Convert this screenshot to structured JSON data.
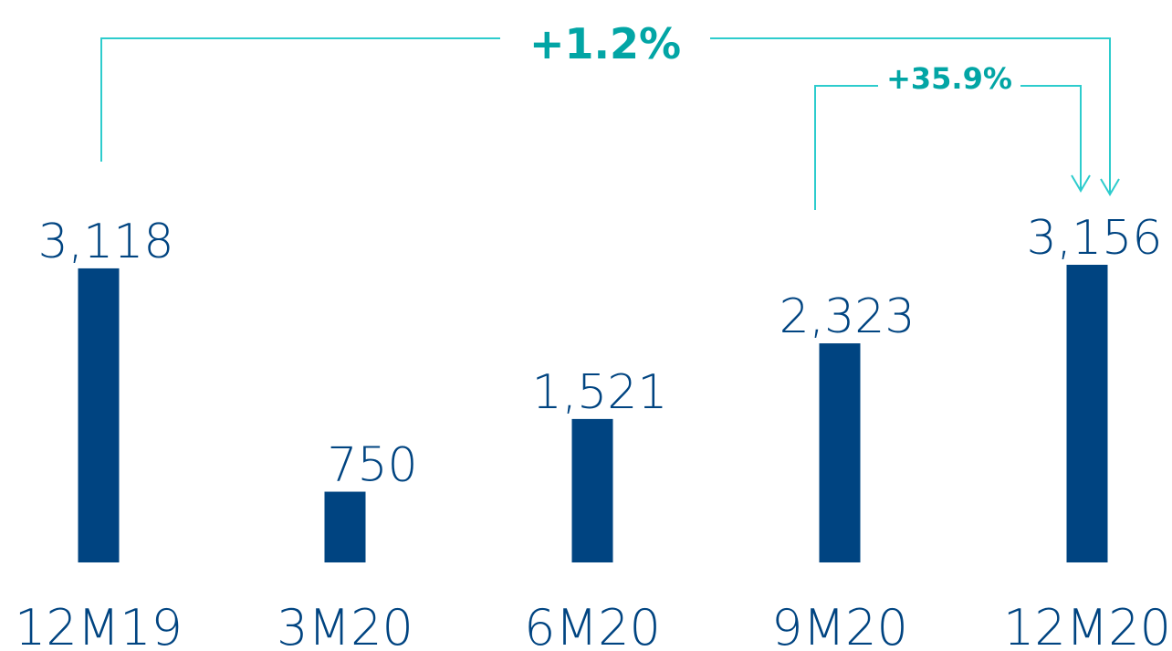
{
  "chart_data": {
    "type": "bar",
    "categories": [
      "12M19",
      "3M20",
      "6M20",
      "9M20",
      "12M20"
    ],
    "values": [
      3118,
      750,
      1521,
      2323,
      3156
    ],
    "value_labels": [
      "3,118",
      "750",
      "1,521",
      "2,323",
      "3,156"
    ],
    "title": "",
    "xlabel": "",
    "ylabel": "",
    "ylim": [
      0,
      3300
    ],
    "grid": false,
    "legend": "none",
    "annotations": [
      {
        "text": "+1.2%",
        "from": "12M19",
        "to": "12M20"
      },
      {
        "text": "+35.9%",
        "from": "9M20",
        "to": "12M20"
      }
    ],
    "colors": {
      "bar": "#004481",
      "label": "#004481",
      "annotation_text": "#02A5A5",
      "annotation_line": "#2DCCCD"
    }
  }
}
